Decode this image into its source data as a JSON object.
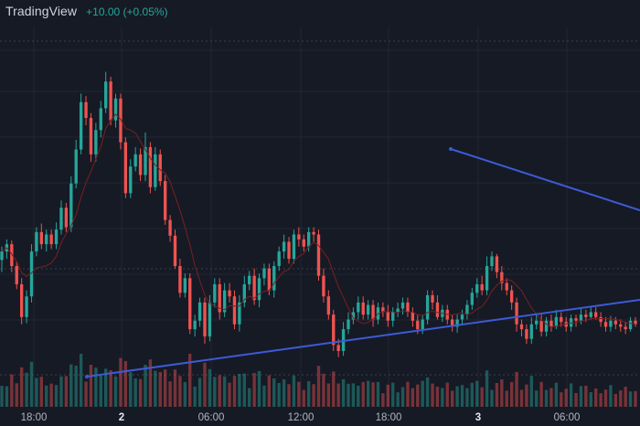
{
  "header": {
    "brand": "TradingView",
    "change": "+10.00 (+0.05%)"
  },
  "colors": {
    "background": "#161a25",
    "grid": "#232733",
    "up": "#26a69a",
    "down": "#ef5350",
    "ma": "#7a1f22",
    "trendline": "#3c5bd6",
    "dotted": "#3a3f4d",
    "axis_text": "#b2b5be"
  },
  "chart_data": {
    "type": "candlestick",
    "x_tick_labels": [
      {
        "label": "18:00",
        "bold": false
      },
      {
        "label": "2",
        "bold": true
      },
      {
        "label": "06:00",
        "bold": false
      },
      {
        "label": "12:00",
        "bold": false
      },
      {
        "label": "18:00",
        "bold": false
      },
      {
        "label": "3",
        "bold": true
      },
      {
        "label": "06:00",
        "bold": false
      }
    ],
    "candles": [
      [
        225,
        232,
        215,
        236
      ],
      [
        232,
        238,
        226,
        242
      ],
      [
        238,
        220,
        215,
        241
      ],
      [
        220,
        205,
        201,
        224
      ],
      [
        205,
        178,
        172,
        210
      ],
      [
        178,
        195,
        173,
        200
      ],
      [
        195,
        232,
        190,
        238
      ],
      [
        232,
        248,
        228,
        252
      ],
      [
        248,
        238,
        234,
        255
      ],
      [
        238,
        246,
        232,
        250
      ],
      [
        246,
        238,
        234,
        250
      ],
      [
        238,
        250,
        234,
        256
      ],
      [
        250,
        268,
        246,
        274
      ],
      [
        268,
        252,
        248,
        272
      ],
      [
        252,
        288,
        248,
        294
      ],
      [
        288,
        316,
        284,
        324
      ],
      [
        316,
        355,
        312,
        362
      ],
      [
        355,
        342,
        336,
        360
      ],
      [
        342,
        312,
        306,
        346
      ],
      [
        312,
        332,
        306,
        338
      ],
      [
        332,
        350,
        326,
        356
      ],
      [
        350,
        372,
        346,
        380
      ],
      [
        372,
        340,
        336,
        376
      ],
      [
        340,
        358,
        334,
        362
      ],
      [
        358,
        322,
        316,
        362
      ],
      [
        322,
        280,
        276,
        326
      ],
      [
        280,
        302,
        276,
        308
      ],
      [
        302,
        312,
        298,
        318
      ],
      [
        312,
        295,
        290,
        317
      ],
      [
        295,
        318,
        290,
        330
      ],
      [
        318,
        285,
        280,
        322
      ],
      [
        285,
        312,
        282,
        318
      ],
      [
        312,
        290,
        286,
        316
      ],
      [
        290,
        258,
        254,
        295
      ],
      [
        258,
        245,
        240,
        262
      ],
      [
        245,
        220,
        218,
        250
      ],
      [
        220,
        198,
        194,
        226
      ],
      [
        198,
        210,
        194,
        214
      ],
      [
        210,
        168,
        164,
        214
      ],
      [
        168,
        175,
        162,
        180
      ],
      [
        175,
        190,
        170,
        194
      ],
      [
        190,
        162,
        156,
        194
      ],
      [
        162,
        190,
        158,
        196
      ],
      [
        190,
        205,
        186,
        210
      ],
      [
        205,
        182,
        176,
        210
      ],
      [
        182,
        200,
        178,
        206
      ],
      [
        200,
        195,
        190,
        206
      ],
      [
        195,
        172,
        168,
        200
      ],
      [
        172,
        190,
        166,
        196
      ],
      [
        190,
        205,
        186,
        212
      ],
      [
        205,
        212,
        200,
        216
      ],
      [
        212,
        192,
        188,
        218
      ],
      [
        192,
        210,
        186,
        214
      ],
      [
        210,
        218,
        204,
        222
      ],
      [
        218,
        200,
        196,
        222
      ],
      [
        200,
        220,
        194,
        224
      ],
      [
        220,
        232,
        216,
        236
      ],
      [
        232,
        240,
        226,
        246
      ],
      [
        240,
        226,
        222,
        244
      ],
      [
        226,
        246,
        222,
        250
      ],
      [
        246,
        242,
        236,
        252
      ],
      [
        242,
        236,
        232,
        246
      ],
      [
        236,
        248,
        232,
        252
      ],
      [
        248,
        246,
        240,
        252
      ],
      [
        246,
        212,
        208,
        250
      ],
      [
        212,
        195,
        190,
        218
      ],
      [
        195,
        180,
        176,
        200
      ],
      [
        180,
        155,
        150,
        184
      ],
      [
        155,
        150,
        145,
        160
      ],
      [
        150,
        168,
        146,
        174
      ],
      [
        168,
        176,
        164,
        182
      ],
      [
        176,
        182,
        172,
        186
      ],
      [
        182,
        190,
        176,
        195
      ],
      [
        190,
        180,
        176,
        195
      ],
      [
        180,
        188,
        176,
        192
      ],
      [
        188,
        176,
        170,
        192
      ],
      [
        176,
        186,
        172,
        190
      ],
      [
        186,
        182,
        178,
        190
      ],
      [
        182,
        175,
        170,
        188
      ],
      [
        175,
        182,
        170,
        186
      ],
      [
        182,
        185,
        178,
        190
      ],
      [
        185,
        190,
        180,
        194
      ],
      [
        190,
        182,
        178,
        194
      ],
      [
        182,
        175,
        170,
        186
      ],
      [
        175,
        168,
        164,
        180
      ],
      [
        168,
        176,
        164,
        180
      ],
      [
        176,
        196,
        172,
        200
      ],
      [
        196,
        190,
        184,
        200
      ],
      [
        190,
        178,
        176,
        196
      ],
      [
        178,
        184,
        174,
        188
      ],
      [
        184,
        176,
        172,
        188
      ],
      [
        176,
        170,
        166,
        180
      ],
      [
        170,
        176,
        165,
        180
      ],
      [
        176,
        180,
        172,
        184
      ],
      [
        180,
        188,
        176,
        192
      ],
      [
        188,
        198,
        184,
        202
      ],
      [
        198,
        205,
        194,
        210
      ],
      [
        205,
        200,
        196,
        212
      ],
      [
        200,
        220,
        196,
        228
      ],
      [
        220,
        228,
        216,
        232
      ],
      [
        228,
        215,
        210,
        230
      ],
      [
        215,
        206,
        200,
        220
      ],
      [
        206,
        200,
        196,
        210
      ],
      [
        200,
        190,
        184,
        204
      ],
      [
        190,
        172,
        166,
        194
      ],
      [
        172,
        168,
        162,
        176
      ],
      [
        168,
        160,
        156,
        172
      ],
      [
        160,
        172,
        156,
        178
      ],
      [
        172,
        175,
        168,
        180
      ],
      [
        175,
        166,
        162,
        180
      ],
      [
        166,
        175,
        162,
        178
      ],
      [
        175,
        170,
        166,
        180
      ],
      [
        170,
        178,
        168,
        184
      ],
      [
        178,
        174,
        170,
        182
      ],
      [
        174,
        170,
        166,
        178
      ],
      [
        170,
        177,
        166,
        180
      ],
      [
        177,
        175,
        170,
        180
      ],
      [
        175,
        180,
        172,
        186
      ],
      [
        180,
        178,
        174,
        184
      ],
      [
        178,
        182,
        176,
        186
      ],
      [
        182,
        178,
        176,
        186
      ],
      [
        178,
        174,
        170,
        182
      ],
      [
        174,
        170,
        166,
        178
      ],
      [
        170,
        175,
        166,
        179
      ],
      [
        175,
        172,
        168,
        178
      ],
      [
        172,
        170,
        166,
        176
      ],
      [
        170,
        168,
        164,
        174
      ],
      [
        168,
        175,
        166,
        178
      ],
      [
        175,
        172,
        170,
        178
      ]
    ]
  }
}
